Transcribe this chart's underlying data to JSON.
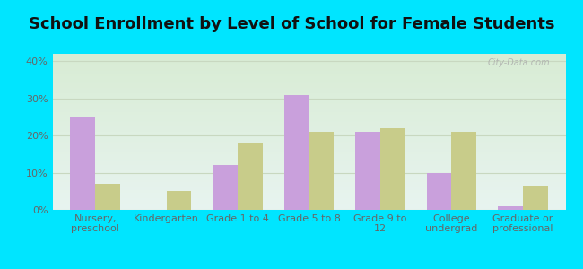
{
  "title": "School Enrollment by Level of School for Female Students",
  "categories": [
    "Nursery,\npreschool",
    "Kindergarten",
    "Grade 1 to 4",
    "Grade 5 to 8",
    "Grade 9 to\n12",
    "College\nundergrad",
    "Graduate or\nprofessional"
  ],
  "north_caldwell": [
    25,
    0,
    12,
    31,
    21,
    10,
    1
  ],
  "new_jersey": [
    7,
    5,
    18,
    21,
    22,
    21,
    6.5
  ],
  "nc_color": "#c9a0dc",
  "nj_color": "#c8cc8a",
  "bar_width": 0.35,
  "ylim": [
    0,
    42
  ],
  "yticks": [
    0,
    10,
    20,
    30,
    40
  ],
  "ytick_labels": [
    "0%",
    "10%",
    "20%",
    "30%",
    "40%"
  ],
  "bg_outer": "#00e5ff",
  "grad_top": "#e8f4f0",
  "grad_bottom": "#d8ecd4",
  "grid_color": "#c8d8c0",
  "title_fontsize": 13,
  "tick_fontsize": 8,
  "legend_fontsize": 9.5,
  "watermark": "City-Data.com"
}
